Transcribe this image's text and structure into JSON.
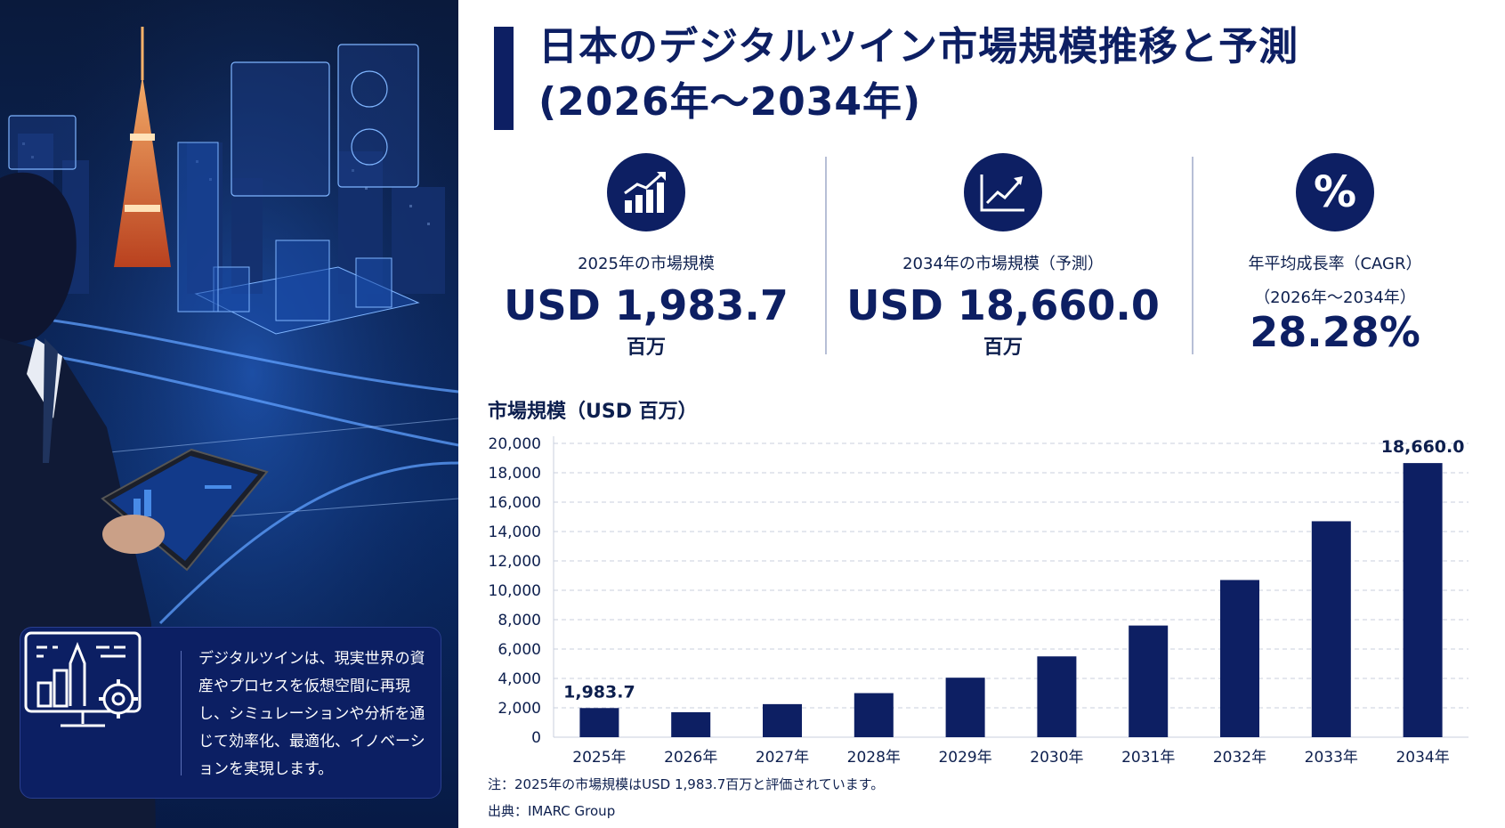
{
  "header": {
    "title_line1": "日本のデジタルツイン市場規模推移と予測",
    "title_line2": "(2026年～2034年)"
  },
  "kpis": [
    {
      "icon": "bar-chart-up-icon",
      "label": "2025年の市場規模",
      "value": "USD 1,983.7",
      "unit": "百万"
    },
    {
      "icon": "line-chart-up-icon",
      "label": "2034年の市場規模（予測）",
      "value": "USD 18,660.0",
      "unit": "百万"
    },
    {
      "icon": "percent-icon",
      "label": "年平均成長率（CAGR）",
      "sublabel": "（2026年～2034年）",
      "value": "28.28%",
      "symbol": "%"
    }
  ],
  "info_box": {
    "text": "デジタルツインは、現実世界の資産やプロセスを仮想空間に再現し、シミュレーションや分析を通じて効率化、最適化、イノベーションを実現します。",
    "icon": "digital-twin-monitor-icon"
  },
  "chart_heading": "市場規模（USD 百万）",
  "chart_data": {
    "type": "bar",
    "categories": [
      "2025年",
      "2026年",
      "2027年",
      "2028年",
      "2029年",
      "2030年",
      "2031年",
      "2032年",
      "2033年",
      "2034年"
    ],
    "values": [
      1983.7,
      1700,
      2250,
      3000,
      4050,
      5500,
      7600,
      10700,
      14700,
      18660.0
    ],
    "data_labels": {
      "0": "1,983.7",
      "9": "18,660.0"
    },
    "ylim": [
      0,
      20000
    ],
    "yticks": [
      0,
      2000,
      4000,
      6000,
      8000,
      10000,
      12000,
      14000,
      16000,
      18000,
      20000
    ],
    "ytick_labels": [
      "0",
      "2,000",
      "4,000",
      "6,000",
      "8,000",
      "10,000",
      "12,000",
      "14,000",
      "16,000",
      "18,000",
      "20,000"
    ],
    "grid": "horizontal dashed",
    "bar_color": "#0d1f63"
  },
  "footer": {
    "note": "注：2025年の市場規模はUSD 1,983.7百万と評価されています。",
    "source": "出典：IMARC Group"
  },
  "colors": {
    "navy": "#0d1f63",
    "accent_orange": "#e0632a"
  }
}
